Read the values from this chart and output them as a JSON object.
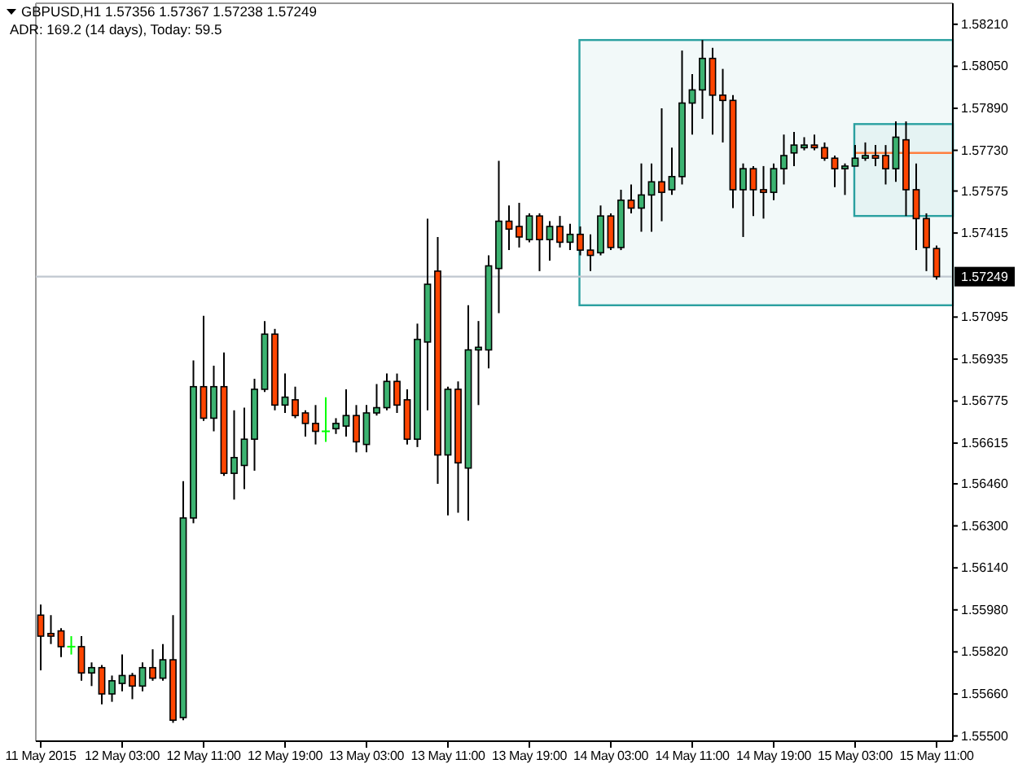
{
  "chart_data": {
    "type": "candlestick",
    "title": "GBPUSD,H1 1.57356 1.57367 1.57238 1.57249",
    "subtitle": "ADR: 169.2 (14 days), Today: 59.5",
    "categories": [
      "11 May 2015",
      null,
      null,
      null,
      null,
      null,
      null,
      null,
      "12 May 03:00",
      null,
      null,
      null,
      null,
      null,
      null,
      null,
      "12 May 11:00",
      null,
      null,
      null,
      null,
      null,
      null,
      null,
      "12 May 19:00",
      null,
      null,
      null,
      null,
      null,
      null,
      null,
      "13 May 03:00",
      null,
      null,
      null,
      null,
      null,
      null,
      null,
      "13 May 11:00",
      null,
      null,
      null,
      null,
      null,
      null,
      null,
      "13 May 19:00",
      null,
      null,
      null,
      null,
      null,
      null,
      null,
      "14 May 03:00",
      null,
      null,
      null,
      null,
      null,
      null,
      null,
      "14 May 11:00",
      null,
      null,
      null,
      null,
      null,
      null,
      null,
      "14 May 19:00",
      null,
      null,
      null,
      null,
      null,
      null,
      null,
      "15 May 03:00",
      null,
      null,
      null,
      null,
      null,
      null,
      null,
      "15 May 11:00"
    ],
    "ohlc": [
      [
        1.5596,
        1.56,
        1.5575,
        1.5588
      ],
      [
        1.5589,
        1.5596,
        1.5585,
        1.5588
      ],
      [
        1.559,
        1.5591,
        1.558,
        1.5584
      ],
      [
        1.5584,
        1.5588,
        1.5581,
        1.5584
      ],
      [
        1.5584,
        1.5588,
        1.5571,
        1.5574
      ],
      [
        1.5574,
        1.5578,
        1.5569,
        1.5576
      ],
      [
        1.5576,
        1.5577,
        1.5562,
        1.5566
      ],
      [
        1.5566,
        1.5573,
        1.5563,
        1.5571
      ],
      [
        1.557,
        1.5581,
        1.5567,
        1.5573
      ],
      [
        1.5573,
        1.5574,
        1.5564,
        1.5569
      ],
      [
        1.5569,
        1.5578,
        1.5567,
        1.5576
      ],
      [
        1.5576,
        1.5583,
        1.5571,
        1.5572
      ],
      [
        1.5572,
        1.5585,
        1.5571,
        1.5579
      ],
      [
        1.5579,
        1.5596,
        1.5555,
        1.5556
      ],
      [
        1.5557,
        1.5647,
        1.5556,
        1.5633
      ],
      [
        1.5633,
        1.5693,
        1.5631,
        1.5683
      ],
      [
        1.5683,
        1.571,
        1.567,
        1.5671
      ],
      [
        1.5671,
        1.5691,
        1.5666,
        1.5683
      ],
      [
        1.5683,
        1.5696,
        1.5649,
        1.565
      ],
      [
        1.565,
        1.5674,
        1.564,
        1.5656
      ],
      [
        1.5653,
        1.5675,
        1.5644,
        1.5663
      ],
      [
        1.5663,
        1.5686,
        1.5651,
        1.5682
      ],
      [
        1.5682,
        1.5708,
        1.5681,
        1.5703
      ],
      [
        1.5703,
        1.5705,
        1.5674,
        1.5676
      ],
      [
        1.5676,
        1.5688,
        1.5673,
        1.5679
      ],
      [
        1.5678,
        1.5683,
        1.5671,
        1.5672
      ],
      [
        1.5673,
        1.5674,
        1.5664,
        1.5669
      ],
      [
        1.5669,
        1.5676,
        1.5661,
        1.5666
      ],
      [
        1.5666,
        1.5679,
        1.5662,
        1.5666
      ],
      [
        1.5667,
        1.5671,
        1.5665,
        1.5669
      ],
      [
        1.5668,
        1.5682,
        1.5664,
        1.5672
      ],
      [
        1.5672,
        1.5676,
        1.5658,
        1.5662
      ],
      [
        1.5661,
        1.5676,
        1.5658,
        1.5673
      ],
      [
        1.5673,
        1.5684,
        1.5672,
        1.5675
      ],
      [
        1.5675,
        1.5688,
        1.5674,
        1.5685
      ],
      [
        1.5685,
        1.5688,
        1.5673,
        1.5676
      ],
      [
        1.5678,
        1.5682,
        1.5661,
        1.5663
      ],
      [
        1.5663,
        1.5707,
        1.566,
        1.5701
      ],
      [
        1.57,
        1.5747,
        1.5674,
        1.5722
      ],
      [
        1.5727,
        1.574,
        1.5646,
        1.5657
      ],
      [
        1.5657,
        1.5683,
        1.5634,
        1.5682
      ],
      [
        1.5682,
        1.5685,
        1.5635,
        1.5654
      ],
      [
        1.5652,
        1.5714,
        1.5632,
        1.5697
      ],
      [
        1.5697,
        1.5708,
        1.5676,
        1.5698
      ],
      [
        1.5697,
        1.5733,
        1.569,
        1.5729
      ],
      [
        1.5728,
        1.5769,
        1.5711,
        1.5746
      ],
      [
        1.5746,
        1.5752,
        1.5735,
        1.5743
      ],
      [
        1.5744,
        1.5753,
        1.5736,
        1.574
      ],
      [
        1.5739,
        1.5749,
        1.5738,
        1.5748
      ],
      [
        1.5748,
        1.5749,
        1.5727,
        1.5739
      ],
      [
        1.5739,
        1.5746,
        1.5731,
        1.5744
      ],
      [
        1.5744,
        1.5748,
        1.5736,
        1.5738
      ],
      [
        1.5738,
        1.5745,
        1.5735,
        1.5741
      ],
      [
        1.5741,
        1.5744,
        1.5733,
        1.5735
      ],
      [
        1.5735,
        1.5741,
        1.5727,
        1.5733
      ],
      [
        1.5734,
        1.5752,
        1.5733,
        1.5748
      ],
      [
        1.5748,
        1.5749,
        1.5735,
        1.5736
      ],
      [
        1.5736,
        1.5758,
        1.5735,
        1.5754
      ],
      [
        1.5754,
        1.576,
        1.5749,
        1.5751
      ],
      [
        1.5751,
        1.5768,
        1.5742,
        1.5756
      ],
      [
        1.5756,
        1.5768,
        1.5742,
        1.5761
      ],
      [
        1.5761,
        1.5789,
        1.5746,
        1.5757
      ],
      [
        1.5758,
        1.5774,
        1.5756,
        1.5763
      ],
      [
        1.5763,
        1.5811,
        1.576,
        1.5791
      ],
      [
        1.5791,
        1.5802,
        1.5779,
        1.5796
      ],
      [
        1.5796,
        1.5815,
        1.5785,
        1.5808
      ],
      [
        1.5808,
        1.5812,
        1.5779,
        1.5794
      ],
      [
        1.5794,
        1.5804,
        1.5776,
        1.5792
      ],
      [
        1.5792,
        1.5794,
        1.5751,
        1.5758
      ],
      [
        1.5758,
        1.5768,
        1.574,
        1.5766
      ],
      [
        1.5766,
        1.5767,
        1.5748,
        1.5758
      ],
      [
        1.5758,
        1.5767,
        1.5747,
        1.5757
      ],
      [
        1.5757,
        1.5768,
        1.5754,
        1.5766
      ],
      [
        1.5766,
        1.5779,
        1.576,
        1.5771
      ],
      [
        1.5772,
        1.578,
        1.5767,
        1.5775
      ],
      [
        1.5774,
        1.5778,
        1.5773,
        1.5775
      ],
      [
        1.5775,
        1.5779,
        1.5773,
        1.5774
      ],
      [
        1.5774,
        1.5776,
        1.5769,
        1.577
      ],
      [
        1.577,
        1.5771,
        1.5759,
        1.5766
      ],
      [
        1.5766,
        1.5768,
        1.5756,
        1.5767
      ],
      [
        1.5767,
        1.5775,
        1.5767,
        1.577
      ],
      [
        1.577,
        1.5776,
        1.5769,
        1.5771
      ],
      [
        1.5771,
        1.5775,
        1.5767,
        1.577
      ],
      [
        1.5771,
        1.5775,
        1.576,
        1.5766
      ],
      [
        1.5766,
        1.5784,
        1.5761,
        1.5778
      ],
      [
        1.5777,
        1.5784,
        1.5748,
        1.5758
      ],
      [
        1.5758,
        1.5768,
        1.5735,
        1.5747
      ],
      [
        1.5747,
        1.5749,
        1.5727,
        1.5736
      ],
      [
        1.57356,
        1.57367,
        1.57238,
        1.57249
      ]
    ],
    "colors": [
      "#ff4500",
      "#ff4500",
      "#ff4500",
      "#00ff00",
      "#ff4500",
      "#3cb371",
      "#ff4500",
      "#3cb371",
      "#3cb371",
      "#ff4500",
      "#3cb371",
      "#ff4500",
      "#3cb371",
      "#ff4500",
      "#3cb371",
      "#3cb371",
      "#ff4500",
      "#3cb371",
      "#ff4500",
      "#3cb371",
      "#3cb371",
      "#3cb371",
      "#3cb371",
      "#ff4500",
      "#3cb371",
      "#ff4500",
      "#ff4500",
      "#ff4500",
      "#00ff00",
      "#3cb371",
      "#3cb371",
      "#ff4500",
      "#3cb371",
      "#3cb371",
      "#3cb371",
      "#ff4500",
      "#ff4500",
      "#3cb371",
      "#3cb371",
      "#ff4500",
      "#3cb371",
      "#ff4500",
      "#3cb371",
      "#3cb371",
      "#3cb371",
      "#3cb371",
      "#ff4500",
      "#ff4500",
      "#3cb371",
      "#ff4500",
      "#3cb371",
      "#ff4500",
      "#3cb371",
      "#ff4500",
      "#ff4500",
      "#3cb371",
      "#ff4500",
      "#3cb371",
      "#ff4500",
      "#3cb371",
      "#3cb371",
      "#ff4500",
      "#3cb371",
      "#3cb371",
      "#3cb371",
      "#3cb371",
      "#ff4500",
      "#ff4500",
      "#ff4500",
      "#3cb371",
      "#ff4500",
      "#ff4500",
      "#3cb371",
      "#3cb371",
      "#3cb371",
      "#3cb371",
      "#ff4500",
      "#ff4500",
      "#ff4500",
      "#3cb371",
      "#3cb371",
      "#3cb371",
      "#ff4500",
      "#ff4500",
      "#3cb371",
      "#ff4500",
      "#ff4500",
      "#ff4500",
      "#ff4500"
    ],
    "ylim": [
      1.5548,
      1.5829
    ],
    "yticks": [
      {
        "value": 1.5821,
        "label": "1.58210"
      },
      {
        "value": 1.5805,
        "label": "1.58050"
      },
      {
        "value": 1.5789,
        "label": "1.57890"
      },
      {
        "value": 1.5773,
        "label": "1.57730"
      },
      {
        "value": 1.57575,
        "label": "1.57575"
      },
      {
        "value": 1.57415,
        "label": "1.57415"
      },
      {
        "value": 1.57095,
        "label": "1.57095"
      },
      {
        "value": 1.56935,
        "label": "1.56935"
      },
      {
        "value": 1.56775,
        "label": "1.56775"
      },
      {
        "value": 1.56615,
        "label": "1.56615"
      },
      {
        "value": 1.5646,
        "label": "1.56460"
      },
      {
        "value": 1.563,
        "label": "1.56300"
      },
      {
        "value": 1.5614,
        "label": "1.56140"
      },
      {
        "value": 1.5598,
        "label": "1.55980"
      },
      {
        "value": 1.5582,
        "label": "1.55820"
      },
      {
        "value": 1.5566,
        "label": "1.55660"
      },
      {
        "value": 1.555,
        "label": "1.55500"
      }
    ],
    "ref_lines": [
      {
        "axis": "y",
        "value": 1.57249,
        "label": "1.57249",
        "color": "#c0c8d0"
      },
      {
        "axis": "y",
        "value": 1.5772,
        "color": "#ff7f3f"
      }
    ],
    "bands": [
      {
        "axis": "y",
        "from": 1.5714,
        "to": 1.5815,
        "color": "#2aa0a0"
      },
      {
        "axis": "y",
        "from": 1.5748,
        "to": 1.5783,
        "color": "#2aa0a0"
      }
    ]
  }
}
